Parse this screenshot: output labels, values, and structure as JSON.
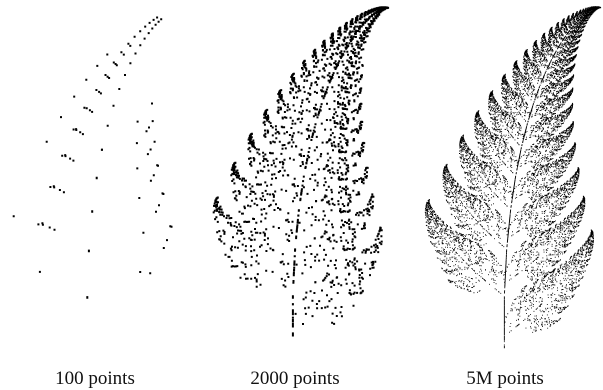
{
  "panels": [
    {
      "label": "100 points"
    },
    {
      "label": "2000 points"
    },
    {
      "label": "5M points"
    }
  ]
}
